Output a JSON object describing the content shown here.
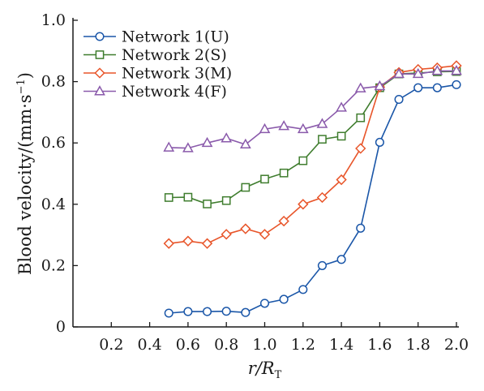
{
  "chart_data": {
    "type": "line",
    "title": "",
    "xlabel": {
      "main": "r/R",
      "sub": "T"
    },
    "ylabel": "Blood velocity/(mm·s",
    "ylabel_sup": "−1",
    "ylabel_close": ")",
    "xlim": [
      0,
      2.0
    ],
    "ylim": [
      0,
      1.0
    ],
    "xticks": [
      0.2,
      0.4,
      0.6,
      0.8,
      1.0,
      1.2,
      1.4,
      1.6,
      1.8,
      2.0
    ],
    "xtick_labels": [
      "0.2",
      "0.4",
      "0.6",
      "0.8",
      "1.0",
      "1.2",
      "1.4",
      "1.6",
      "1.8",
      "2.0"
    ],
    "yticks": [
      0,
      0.2,
      0.4,
      0.6,
      0.8,
      1.0
    ],
    "ytick_labels": [
      "0",
      "0.2",
      "0.4",
      "0.6",
      "0.8",
      "1.0"
    ],
    "grid": false,
    "legend_position": "top-left",
    "x": [
      0.5,
      0.6,
      0.7,
      0.8,
      0.9,
      1.0,
      1.1,
      1.2,
      1.3,
      1.4,
      1.5,
      1.6,
      1.7,
      1.8,
      1.9,
      2.0
    ],
    "series": [
      {
        "name": "Network 1(U)",
        "marker": "circle",
        "color": "#1a56a8",
        "values": [
          0.045,
          0.05,
          0.05,
          0.051,
          0.047,
          0.077,
          0.09,
          0.122,
          0.2,
          0.22,
          0.322,
          0.602,
          0.742,
          0.78,
          0.78,
          0.79
        ]
      },
      {
        "name": "Network 2(S)",
        "marker": "square",
        "color": "#3f7d2e",
        "values": [
          0.422,
          0.423,
          0.401,
          0.412,
          0.455,
          0.482,
          0.502,
          0.542,
          0.612,
          0.622,
          0.682,
          0.78,
          0.825,
          0.828,
          0.832,
          0.833
        ]
      },
      {
        "name": "Network 3(M)",
        "marker": "diamond",
        "color": "#e8552a",
        "values": [
          0.272,
          0.28,
          0.272,
          0.302,
          0.32,
          0.302,
          0.345,
          0.4,
          0.422,
          0.48,
          0.582,
          0.782,
          0.83,
          0.84,
          0.845,
          0.852
        ]
      },
      {
        "name": "Network 4(F)",
        "marker": "triangle",
        "color": "#8a5aab",
        "values": [
          0.585,
          0.583,
          0.6,
          0.615,
          0.595,
          0.645,
          0.655,
          0.645,
          0.662,
          0.715,
          0.778,
          0.785,
          0.825,
          0.825,
          0.835,
          0.835
        ]
      }
    ]
  }
}
